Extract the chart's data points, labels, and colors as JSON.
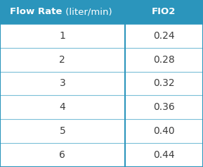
{
  "header_bold": "Flow Rate",
  "header_normal": " (liter/min)",
  "header_col2": "FIO2",
  "rows": [
    [
      "1",
      "0.24"
    ],
    [
      "2",
      "0.28"
    ],
    [
      "3",
      "0.32"
    ],
    [
      "4",
      "0.36"
    ],
    [
      "5",
      "0.40"
    ],
    [
      "6",
      "0.44"
    ]
  ],
  "header_bg_color": "#2B95BC",
  "header_text_color": "#FFFFFF",
  "row_bg_color": "#FFFFFF",
  "row_text_color": "#3D3D3D",
  "grid_line_color": "#7BBFD8",
  "outer_border_color": "#2B95BC",
  "col_split": 0.615,
  "header_fontsize": 9.5,
  "row_fontsize": 10,
  "fig_width": 2.89,
  "fig_height": 2.37,
  "dpi": 100
}
